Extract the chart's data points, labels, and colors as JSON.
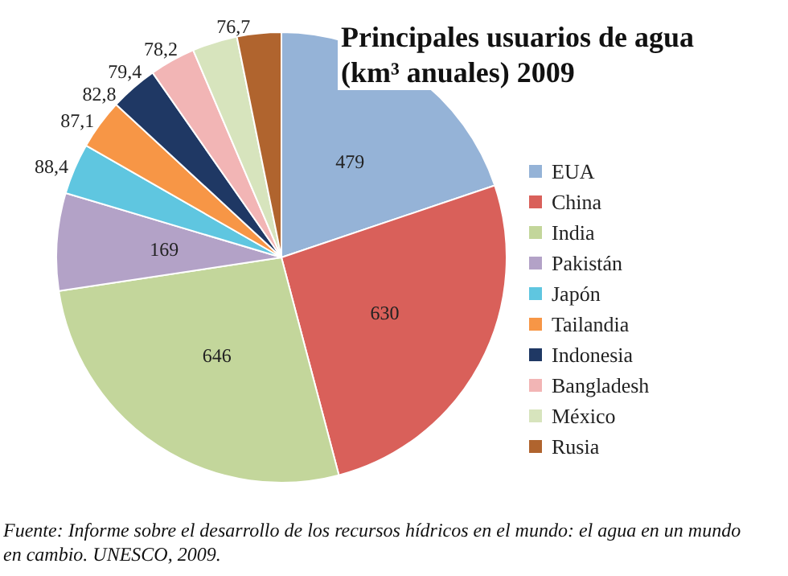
{
  "chart_data": {
    "type": "pie",
    "title": "Principales usuarios de agua (km³ anuales) 2009",
    "categories": [
      "EUA",
      "China",
      "India",
      "Pakistán",
      "Japón",
      "Tailandia",
      "Indonesia",
      "Bangladesh",
      "México",
      "Rusia"
    ],
    "values": [
      479,
      630,
      646,
      169,
      88.4,
      87.1,
      82.8,
      79.4,
      78.2,
      76.7
    ],
    "value_labels": [
      "479",
      "630",
      "646",
      "169",
      "88,4",
      "87,1",
      "82,8",
      "79,4",
      "78,2",
      "76,7"
    ],
    "colors": [
      "#95b3d7",
      "#d9605a",
      "#c3d69b",
      "#b3a2c7",
      "#5fc6e0",
      "#f79646",
      "#1f3864",
      "#f2b5b5",
      "#d7e4bd",
      "#b0642e"
    ],
    "legend": "right",
    "annotations": [
      "Fuente: Informe sobre el desarrollo de los recursos hídricos en el mundo: el agua en un mundo en cambio. UNESCO, 2009."
    ]
  }
}
